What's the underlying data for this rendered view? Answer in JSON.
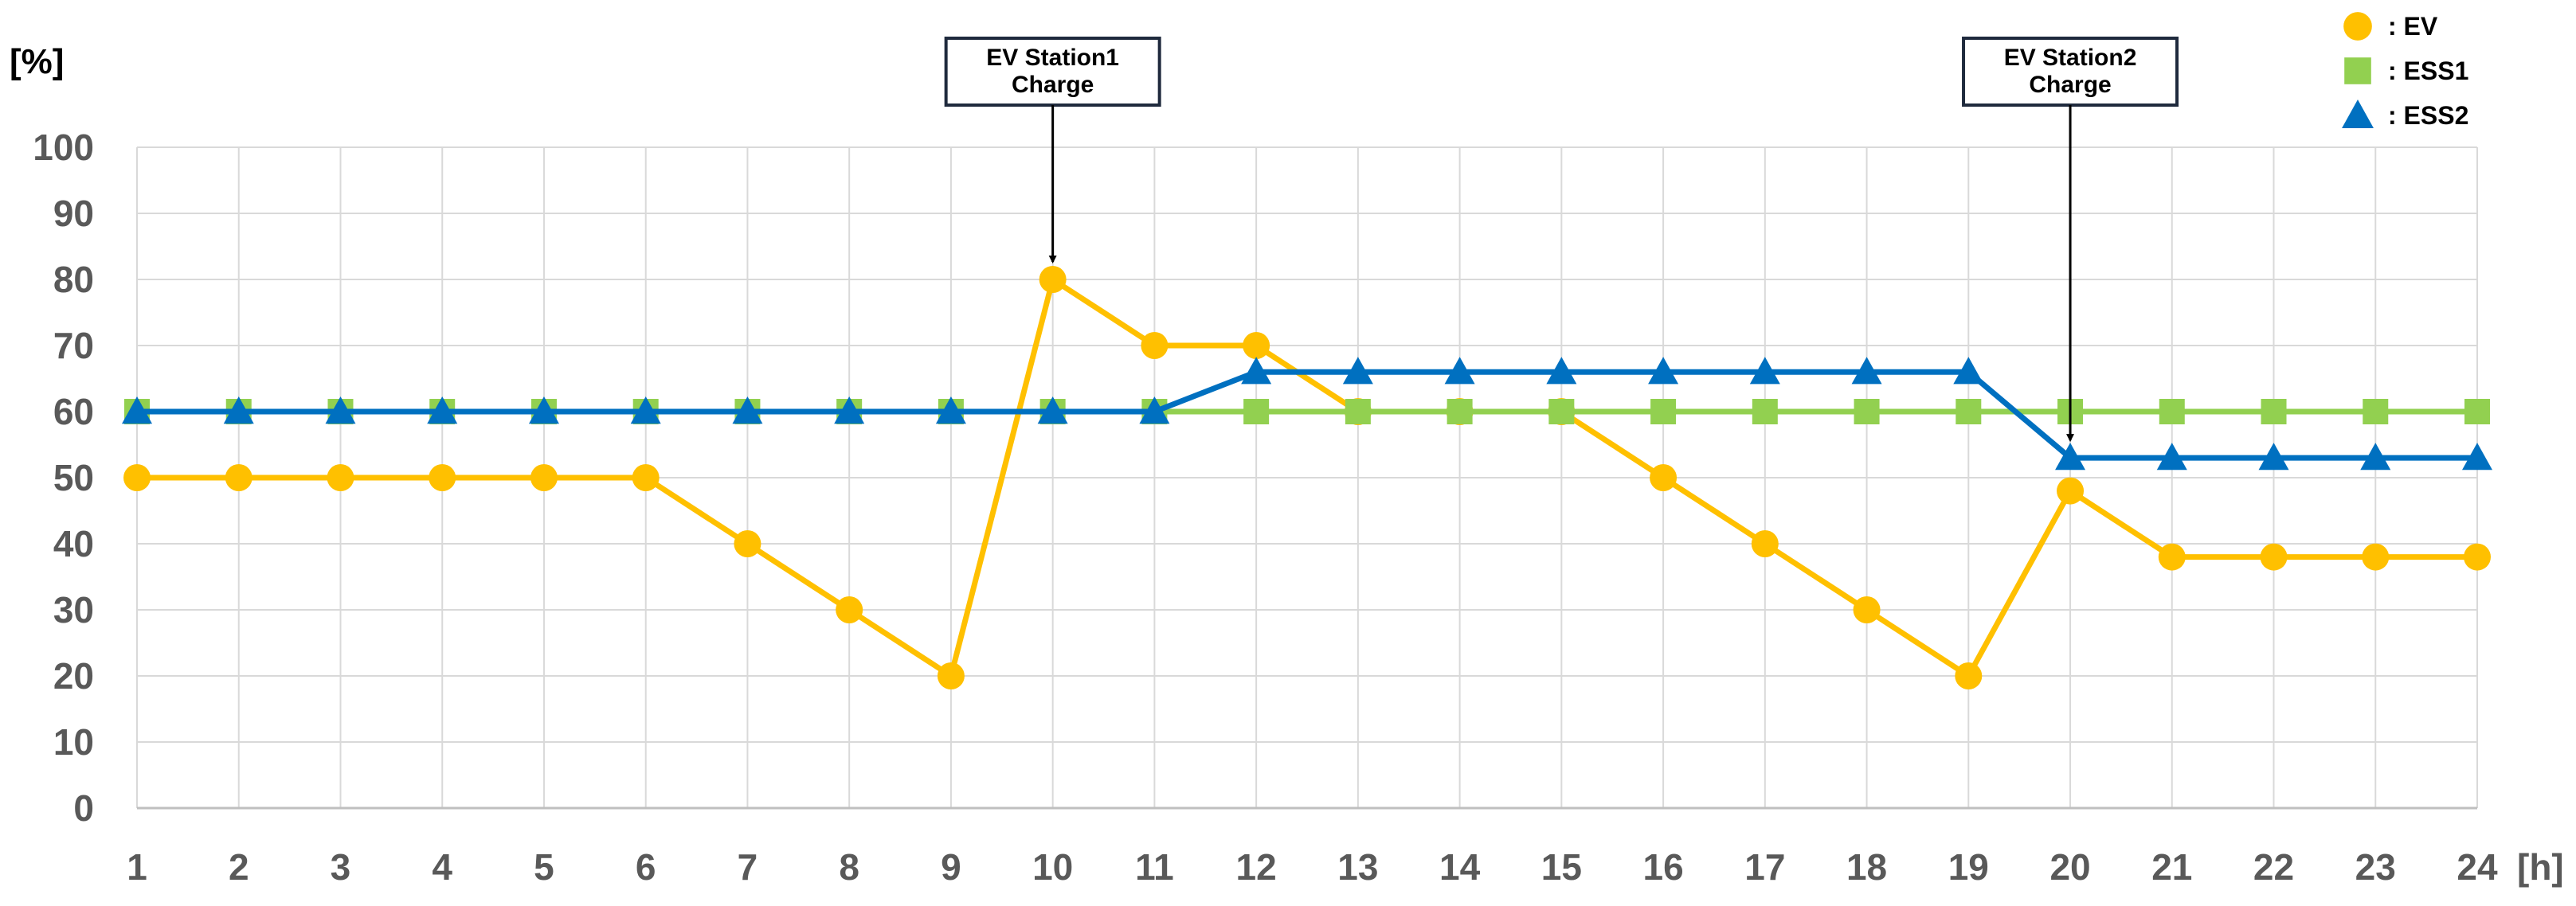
{
  "chart_data": {
    "type": "line",
    "ylabel": "[%]",
    "xlabel": "[h]",
    "x": [
      1,
      2,
      3,
      4,
      5,
      6,
      7,
      8,
      9,
      10,
      11,
      12,
      13,
      14,
      15,
      16,
      17,
      18,
      19,
      20,
      21,
      22,
      23,
      24
    ],
    "xlim": [
      1,
      24
    ],
    "ylim": [
      0,
      100
    ],
    "yticks": [
      0,
      10,
      20,
      30,
      40,
      50,
      60,
      70,
      80,
      90,
      100
    ],
    "grid": true,
    "legend_position": "top-right",
    "series": [
      {
        "name": ": EV",
        "marker": "circle",
        "color": "#FFC000",
        "values": [
          50,
          50,
          50,
          50,
          50,
          50,
          40,
          30,
          20,
          80,
          70,
          70,
          60,
          60,
          60,
          50,
          40,
          30,
          20,
          48,
          38,
          38,
          38,
          38
        ]
      },
      {
        "name": ": ESS1",
        "marker": "square",
        "color": "#92D050",
        "values": [
          60,
          60,
          60,
          60,
          60,
          60,
          60,
          60,
          60,
          60,
          60,
          60,
          60,
          60,
          60,
          60,
          60,
          60,
          60,
          60,
          60,
          60,
          60,
          60
        ]
      },
      {
        "name": ": ESS2",
        "marker": "triangle",
        "color": "#0070C0",
        "values": [
          60,
          60,
          60,
          60,
          60,
          60,
          60,
          60,
          60,
          60,
          60,
          66,
          66,
          66,
          66,
          66,
          66,
          66,
          66,
          53,
          53,
          53,
          53,
          53
        ]
      }
    ],
    "annotations": [
      {
        "lines": [
          "EV Station1",
          "Charge"
        ],
        "x": 10,
        "y": 80
      },
      {
        "lines": [
          "EV Station2",
          "Charge"
        ],
        "x": 20,
        "y": 53
      }
    ]
  }
}
